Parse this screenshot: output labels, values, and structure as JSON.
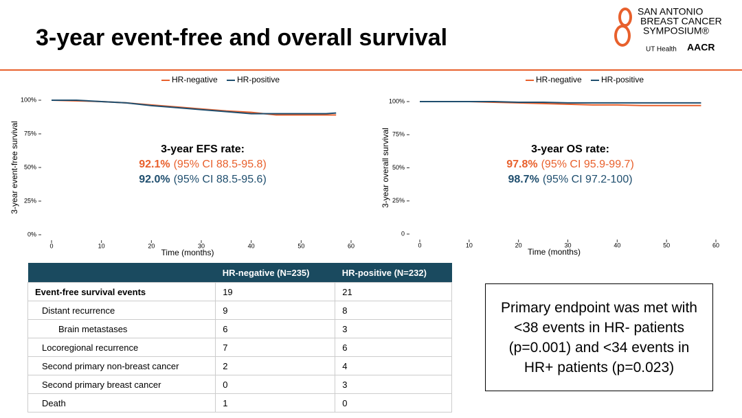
{
  "header": {
    "title": "3-year event-free and overall survival",
    "logo": [
      "SAN ANTONIO",
      "BREAST CANCER",
      "SYMPOSIUM®"
    ],
    "partners": [
      "UT Health",
      "AACR"
    ]
  },
  "chart_data": [
    {
      "type": "line",
      "y_label": "3-year event-free survival",
      "x_label": "Time (months)",
      "x": [
        0,
        5,
        10,
        15,
        20,
        25,
        30,
        35,
        40,
        45,
        50,
        55,
        57
      ],
      "series": [
        {
          "name": "HR-negative",
          "color": "#e8602c",
          "values": [
            100,
            99.5,
            99,
            98,
            96.5,
            95,
            93.5,
            92,
            91,
            89,
            89,
            89,
            89
          ]
        },
        {
          "name": "HR-positive",
          "color": "#1f4e6e",
          "values": [
            100,
            100,
            99,
            98,
            96,
            94.5,
            93,
            91.5,
            90,
            90,
            90,
            90,
            90.5
          ]
        }
      ],
      "xlim": [
        0,
        60
      ],
      "xticks": [
        0,
        10,
        20,
        30,
        40,
        50,
        60
      ],
      "ylim": [
        0,
        100
      ],
      "yticks": [
        {
          "value": 0,
          "label": "0%"
        },
        {
          "value": 25,
          "label": "25%"
        },
        {
          "value": 50,
          "label": "50%"
        },
        {
          "value": 75,
          "label": "75%"
        },
        {
          "value": 100,
          "label": "100%"
        }
      ],
      "annotation": {
        "heading": "3-year EFS rate:",
        "lines": [
          {
            "rate": "92.1%",
            "ci": "(95% CI 88.5-95.8)"
          },
          {
            "rate": "92.0%",
            "ci": "(95% CI 88.5-95.6)"
          }
        ]
      }
    },
    {
      "type": "line",
      "y_label": "3-year overall survival",
      "x_label": "Time (months)",
      "x": [
        0,
        5,
        10,
        15,
        20,
        25,
        30,
        35,
        40,
        45,
        50,
        55,
        57
      ],
      "series": [
        {
          "name": "HR-negative",
          "color": "#e8602c",
          "values": [
            100,
            100,
            100,
            99.5,
            99,
            98.5,
            98,
            97.5,
            97.5,
            97,
            97,
            97,
            97
          ]
        },
        {
          "name": "HR-positive",
          "color": "#1f4e6e",
          "values": [
            100,
            100,
            100,
            100,
            99.5,
            99.5,
            99,
            99,
            99,
            99,
            99,
            99,
            99
          ]
        }
      ],
      "xlim": [
        0,
        60
      ],
      "xticks": [
        0,
        10,
        20,
        30,
        40,
        50,
        60
      ],
      "ylim": [
        0,
        100
      ],
      "yticks": [
        0,
        {
          "value": 25,
          "label": "25%"
        },
        {
          "value": 50,
          "label": "50%"
        },
        {
          "value": 75,
          "label": "75%"
        },
        {
          "value": 100,
          "label": "100%"
        }
      ],
      "annotation": {
        "heading": "3-year OS rate:",
        "lines": [
          {
            "rate": "97.8%",
            "ci": "(95% CI 95.9-99.7)"
          },
          {
            "rate": "98.7%",
            "ci": "(95% CI 97.2-100)"
          }
        ]
      }
    }
  ],
  "table": {
    "columns": [
      "",
      "HR-negative (N=235)",
      "HR-positive (N=232)"
    ],
    "rows": [
      [
        "Event-free survival events",
        19,
        21
      ],
      [
        "Distant recurrence",
        9,
        8
      ],
      [
        "Brain metastases",
        6,
        3
      ],
      [
        "Locoregional recurrence",
        7,
        6
      ],
      [
        "Second primary non-breast cancer",
        2,
        4
      ],
      [
        "Second primary breast cancer",
        0,
        3
      ],
      [
        "Death",
        1,
        0
      ]
    ]
  },
  "note": "Primary endpoint was met with <38 events in HR- patients (p=0.001) and <34 events in HR+ patients (p=0.023)"
}
